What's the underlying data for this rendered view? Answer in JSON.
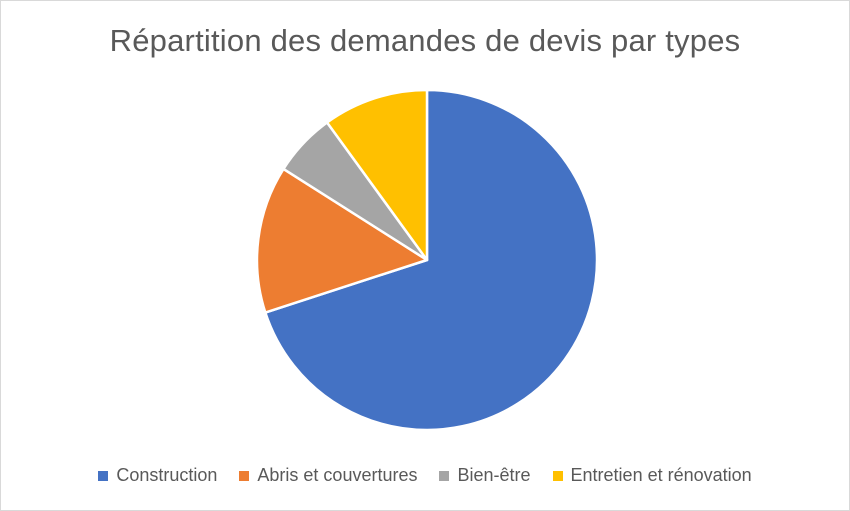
{
  "chart_data": {
    "type": "pie",
    "title": "Répartition des demandes de devis par types",
    "categories": [
      "Construction",
      "Abris et couvertures",
      "Bien-être",
      "Entretien et rénovation"
    ],
    "values": [
      70,
      14,
      6,
      10
    ],
    "unit": "%",
    "colors": [
      "#4472c4",
      "#ed7d31",
      "#a5a5a5",
      "#ffc000"
    ],
    "slice_border_color": "#ffffff",
    "start_angle_deg": 0,
    "direction": "clockwise",
    "legend_position": "bottom",
    "data_labels": false
  }
}
